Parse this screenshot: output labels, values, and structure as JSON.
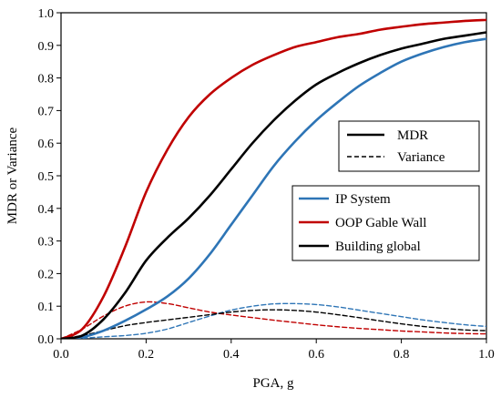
{
  "chart_data": {
    "type": "line",
    "xlabel": "PGA, g",
    "ylabel": "MDR or Variance",
    "xlim": [
      0.0,
      1.0
    ],
    "ylim": [
      0.0,
      1.0
    ],
    "x_ticks": [
      "0.0",
      "0.2",
      "0.4",
      "0.6",
      "0.8",
      "1.0"
    ],
    "y_ticks": [
      "0.0",
      "0.1",
      "0.2",
      "0.3",
      "0.4",
      "0.5",
      "0.6",
      "0.7",
      "0.8",
      "0.9",
      "1.0"
    ],
    "grid": false,
    "legend_style": {
      "position": "right, middle",
      "entries": [
        {
          "label": "MDR",
          "line_style": "solid",
          "color": "#000000"
        },
        {
          "label": "Variance",
          "line_style": "dashed",
          "color": "#000000"
        }
      ]
    },
    "legend_series": {
      "position": "right, below style legend",
      "entries": [
        {
          "label": "IP System",
          "color": "#2e75b6"
        },
        {
          "label": "OOP Gable Wall",
          "color": "#c00000"
        },
        {
          "label": "Building global",
          "color": "#000000"
        }
      ]
    },
    "series": [
      {
        "name": "IP System",
        "kind": "MDR",
        "color": "#2e75b6",
        "style": "solid",
        "x": [
          0.0,
          0.05,
          0.1,
          0.15,
          0.2,
          0.25,
          0.3,
          0.35,
          0.4,
          0.45,
          0.5,
          0.55,
          0.6,
          0.65,
          0.7,
          0.75,
          0.8,
          0.85,
          0.9,
          0.95,
          1.0
        ],
        "y": [
          0.0,
          0.005,
          0.025,
          0.055,
          0.09,
          0.13,
          0.185,
          0.26,
          0.35,
          0.44,
          0.53,
          0.605,
          0.67,
          0.725,
          0.775,
          0.815,
          0.85,
          0.875,
          0.895,
          0.91,
          0.92
        ]
      },
      {
        "name": "OOP Gable Wall",
        "kind": "MDR",
        "color": "#c00000",
        "style": "solid",
        "x": [
          0.0,
          0.05,
          0.1,
          0.15,
          0.2,
          0.25,
          0.3,
          0.35,
          0.4,
          0.45,
          0.5,
          0.55,
          0.6,
          0.65,
          0.7,
          0.75,
          0.8,
          0.85,
          0.9,
          0.95,
          1.0
        ],
        "y": [
          0.0,
          0.03,
          0.13,
          0.28,
          0.45,
          0.58,
          0.68,
          0.75,
          0.8,
          0.84,
          0.87,
          0.895,
          0.91,
          0.925,
          0.935,
          0.948,
          0.957,
          0.965,
          0.97,
          0.975,
          0.978
        ]
      },
      {
        "name": "Building global",
        "kind": "MDR",
        "color": "#000000",
        "style": "solid",
        "x": [
          0.0,
          0.05,
          0.1,
          0.15,
          0.2,
          0.25,
          0.3,
          0.35,
          0.4,
          0.45,
          0.5,
          0.55,
          0.6,
          0.65,
          0.7,
          0.75,
          0.8,
          0.85,
          0.9,
          0.95,
          1.0
        ],
        "y": [
          0.0,
          0.01,
          0.06,
          0.14,
          0.24,
          0.31,
          0.37,
          0.44,
          0.52,
          0.6,
          0.67,
          0.73,
          0.78,
          0.815,
          0.845,
          0.87,
          0.89,
          0.905,
          0.92,
          0.93,
          0.94
        ]
      },
      {
        "name": "IP System",
        "kind": "Variance",
        "color": "#2e75b6",
        "style": "dashed",
        "x": [
          0.0,
          0.05,
          0.1,
          0.15,
          0.2,
          0.25,
          0.3,
          0.35,
          0.4,
          0.45,
          0.5,
          0.55,
          0.6,
          0.65,
          0.7,
          0.75,
          0.8,
          0.85,
          0.9,
          0.95,
          1.0
        ],
        "y": [
          0.0,
          0.002,
          0.006,
          0.01,
          0.017,
          0.03,
          0.05,
          0.07,
          0.088,
          0.1,
          0.107,
          0.108,
          0.105,
          0.098,
          0.088,
          0.078,
          0.068,
          0.058,
          0.05,
          0.043,
          0.038
        ]
      },
      {
        "name": "OOP Gable Wall",
        "kind": "Variance",
        "color": "#c00000",
        "style": "dashed",
        "x": [
          0.0,
          0.05,
          0.1,
          0.15,
          0.2,
          0.25,
          0.3,
          0.35,
          0.4,
          0.45,
          0.5,
          0.55,
          0.6,
          0.65,
          0.7,
          0.75,
          0.8,
          0.85,
          0.9,
          0.95,
          1.0
        ],
        "y": [
          0.0,
          0.03,
          0.07,
          0.1,
          0.113,
          0.108,
          0.095,
          0.082,
          0.073,
          0.065,
          0.057,
          0.05,
          0.043,
          0.037,
          0.032,
          0.028,
          0.024,
          0.021,
          0.018,
          0.016,
          0.015
        ]
      },
      {
        "name": "Building global",
        "kind": "Variance",
        "color": "#000000",
        "style": "dashed",
        "x": [
          0.0,
          0.05,
          0.1,
          0.15,
          0.2,
          0.25,
          0.3,
          0.35,
          0.4,
          0.45,
          0.5,
          0.55,
          0.6,
          0.65,
          0.7,
          0.75,
          0.8,
          0.85,
          0.9,
          0.95,
          1.0
        ],
        "y": [
          0.0,
          0.01,
          0.025,
          0.04,
          0.05,
          0.058,
          0.066,
          0.074,
          0.082,
          0.087,
          0.089,
          0.087,
          0.082,
          0.074,
          0.065,
          0.055,
          0.046,
          0.038,
          0.032,
          0.027,
          0.025
        ]
      }
    ]
  }
}
